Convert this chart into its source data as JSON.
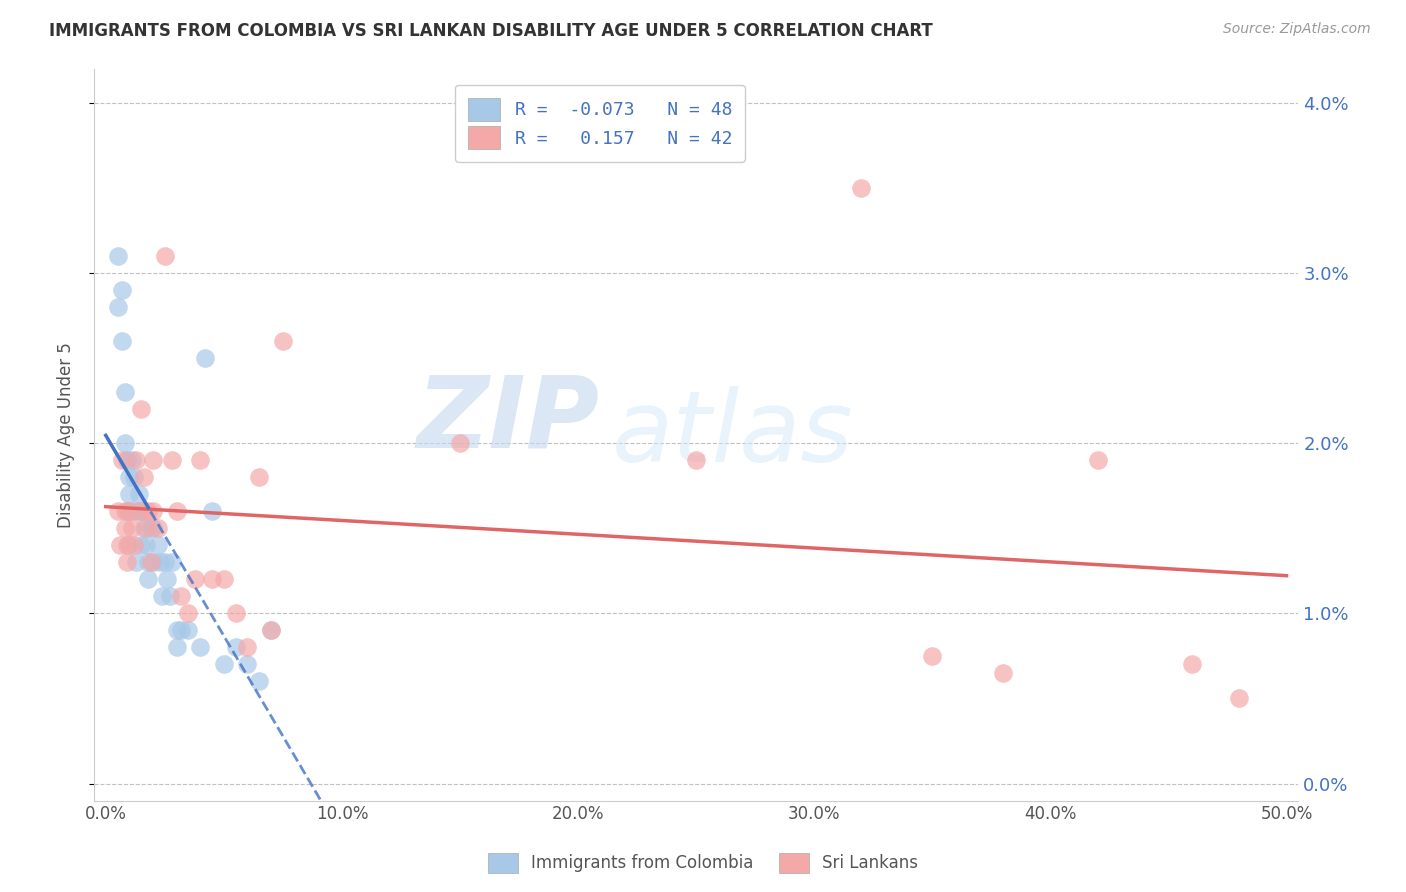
{
  "title": "IMMIGRANTS FROM COLOMBIA VS SRI LANKAN DISABILITY AGE UNDER 5 CORRELATION CHART",
  "source": "Source: ZipAtlas.com",
  "ylabel": "Disability Age Under 5",
  "xlabel_ticks": [
    "0.0%",
    "10.0%",
    "20.0%",
    "30.0%",
    "40.0%",
    "50.0%"
  ],
  "xlabel_vals": [
    0.0,
    0.1,
    0.2,
    0.3,
    0.4,
    0.5
  ],
  "ytick_vals": [
    0.0,
    0.01,
    0.02,
    0.03,
    0.04
  ],
  "ytick_labels_right": [
    "0.0%",
    "1.0%",
    "2.0%",
    "3.0%",
    "4.0%"
  ],
  "legend_labels": [
    "Immigrants from Colombia",
    "Sri Lankans"
  ],
  "R_colombia": -0.073,
  "N_colombia": 48,
  "R_srilanka": 0.157,
  "N_srilanka": 42,
  "color_colombia": "#a8c8e8",
  "color_srilanka": "#f4a8a8",
  "trendline_color_colombia": "#4472c4",
  "trendline_color_srilanka": "#e06666",
  "watermark_zip": "ZIP",
  "watermark_atlas": "atlas",
  "colombia_x": [
    0.005,
    0.005,
    0.007,
    0.007,
    0.008,
    0.008,
    0.009,
    0.009,
    0.009,
    0.01,
    0.01,
    0.01,
    0.01,
    0.011,
    0.012,
    0.012,
    0.013,
    0.014,
    0.014,
    0.015,
    0.015,
    0.016,
    0.016,
    0.017,
    0.018,
    0.018,
    0.019,
    0.02,
    0.02,
    0.022,
    0.023,
    0.024,
    0.025,
    0.026,
    0.027,
    0.028,
    0.03,
    0.03,
    0.032,
    0.035,
    0.04,
    0.042,
    0.045,
    0.05,
    0.055,
    0.06,
    0.065,
    0.07
  ],
  "colombia_y": [
    0.031,
    0.028,
    0.029,
    0.026,
    0.023,
    0.02,
    0.019,
    0.019,
    0.016,
    0.018,
    0.017,
    0.016,
    0.014,
    0.019,
    0.018,
    0.016,
    0.013,
    0.017,
    0.016,
    0.016,
    0.014,
    0.016,
    0.015,
    0.014,
    0.013,
    0.012,
    0.015,
    0.015,
    0.013,
    0.014,
    0.013,
    0.011,
    0.013,
    0.012,
    0.011,
    0.013,
    0.009,
    0.008,
    0.009,
    0.009,
    0.008,
    0.025,
    0.016,
    0.007,
    0.008,
    0.007,
    0.006,
    0.009
  ],
  "srilanka_x": [
    0.005,
    0.006,
    0.007,
    0.008,
    0.008,
    0.009,
    0.009,
    0.01,
    0.011,
    0.012,
    0.013,
    0.014,
    0.015,
    0.016,
    0.017,
    0.018,
    0.019,
    0.02,
    0.02,
    0.022,
    0.025,
    0.028,
    0.03,
    0.032,
    0.035,
    0.038,
    0.04,
    0.045,
    0.05,
    0.055,
    0.06,
    0.065,
    0.07,
    0.075,
    0.15,
    0.25,
    0.32,
    0.35,
    0.38,
    0.42,
    0.46,
    0.48
  ],
  "srilanka_y": [
    0.016,
    0.014,
    0.019,
    0.015,
    0.016,
    0.014,
    0.013,
    0.016,
    0.015,
    0.014,
    0.019,
    0.016,
    0.022,
    0.018,
    0.015,
    0.016,
    0.013,
    0.019,
    0.016,
    0.015,
    0.031,
    0.019,
    0.016,
    0.011,
    0.01,
    0.012,
    0.019,
    0.012,
    0.012,
    0.01,
    0.008,
    0.018,
    0.009,
    0.026,
    0.02,
    0.019,
    0.035,
    0.0075,
    0.0065,
    0.019,
    0.007,
    0.005
  ]
}
